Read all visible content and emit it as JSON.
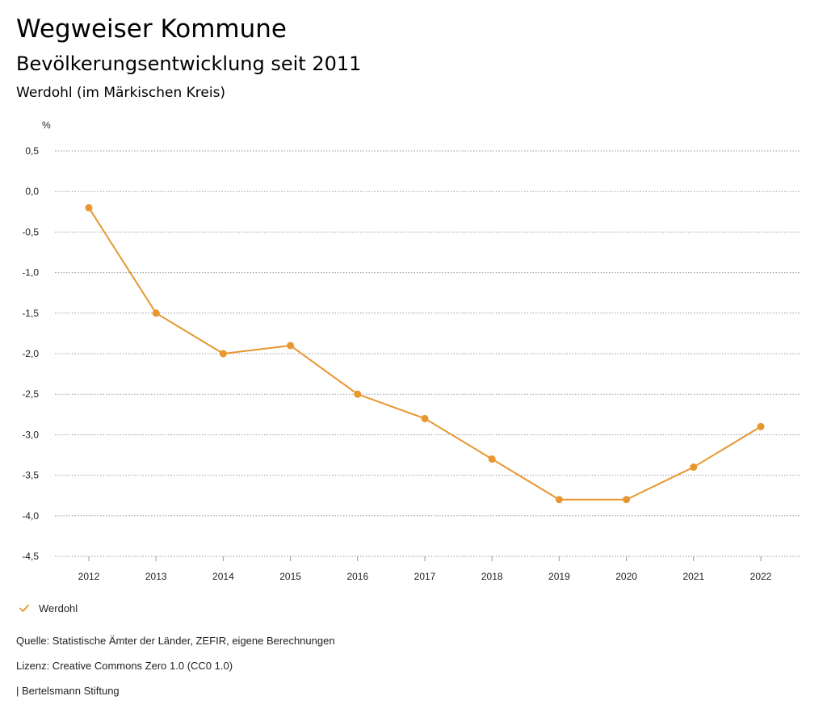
{
  "header": {
    "title": "Wegweiser Kommune",
    "subtitle": "Bevölkerungsentwicklung seit 2011",
    "location": "Werdohl (im Märkischen Kreis)"
  },
  "chart_data": {
    "type": "line",
    "title": "Bevölkerungsentwicklung seit 2011",
    "ylabel": "%",
    "xlabel": "",
    "x": [
      "2012",
      "2013",
      "2014",
      "2015",
      "2016",
      "2017",
      "2018",
      "2019",
      "2020",
      "2021",
      "2022"
    ],
    "series": [
      {
        "name": "Werdohl",
        "color": "#E8962E",
        "values": [
          -0.2,
          -1.5,
          -2.0,
          -1.9,
          -2.5,
          -2.8,
          -3.3,
          -3.8,
          -3.8,
          -3.4,
          -2.9
        ]
      }
    ],
    "ylim": [
      -4.5,
      0.5
    ],
    "yticks": [
      0.5,
      0.0,
      -0.5,
      -1.0,
      -1.5,
      -2.0,
      -2.5,
      -3.0,
      -3.5,
      -4.0,
      -4.5
    ],
    "ytick_labels": [
      "0,5",
      "0,0",
      "-0,5",
      "-1,0",
      "-1,5",
      "-2,0",
      "-2,5",
      "-3,0",
      "-3,5",
      "-4,0",
      "-4,5"
    ],
    "grid": true,
    "legend": "bottom-left"
  },
  "legend": {
    "label": "Werdohl",
    "icon": "check-icon"
  },
  "footer": {
    "source": "Quelle: Statistische Ämter der Länder, ZEFIR, eigene Berechnungen",
    "license": "Lizenz: Creative Commons Zero 1.0 (CC0 1.0)",
    "publisher": "| Bertelsmann Stiftung"
  }
}
